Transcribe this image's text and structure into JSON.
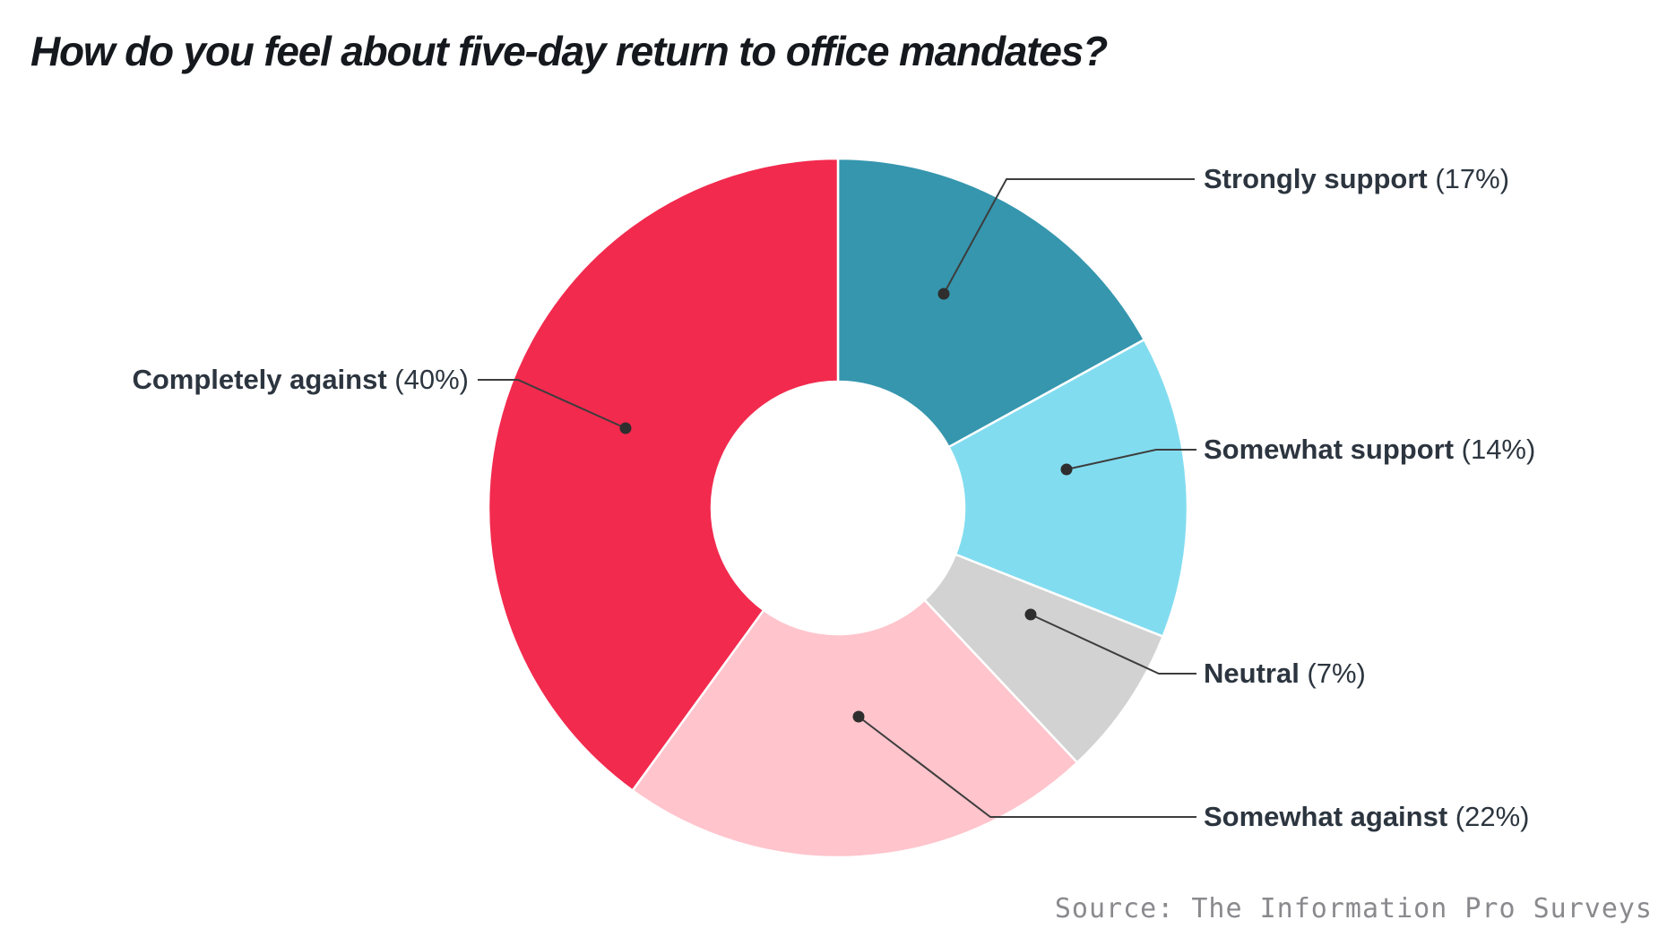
{
  "title": "How do you feel about five-day return to office mandates?",
  "source": "Source: The Information Pro Surveys",
  "chart_data": {
    "type": "pie",
    "subtype": "donut",
    "title": "How do you feel about five-day return to office mandates?",
    "order": "clockwise-from-top",
    "unit": "%",
    "total": 100,
    "legend_position": "callout-labels",
    "categories": [
      "Strongly support",
      "Somewhat support",
      "Neutral",
      "Somewhat against",
      "Completely against"
    ],
    "values": [
      17,
      14,
      7,
      22,
      40
    ],
    "slices": [
      {
        "label": "Strongly support",
        "value": 17,
        "display": "(17%)",
        "color": "#3596ae"
      },
      {
        "label": "Somewhat support",
        "value": 14,
        "display": "(14%)",
        "color": "#82dcf0"
      },
      {
        "label": "Neutral",
        "value": 7,
        "display": "(7%)",
        "color": "#d2d2d2"
      },
      {
        "label": "Somewhat against",
        "value": 22,
        "display": "(22%)",
        "color": "#ffc4cc"
      },
      {
        "label": "Completely against",
        "value": 40,
        "display": "(40%)",
        "color": "#f22a4e"
      }
    ],
    "text_color": "#2c353f",
    "leader_line_color": "#3d3d3d",
    "source": "Source: The Information Pro Surveys"
  }
}
